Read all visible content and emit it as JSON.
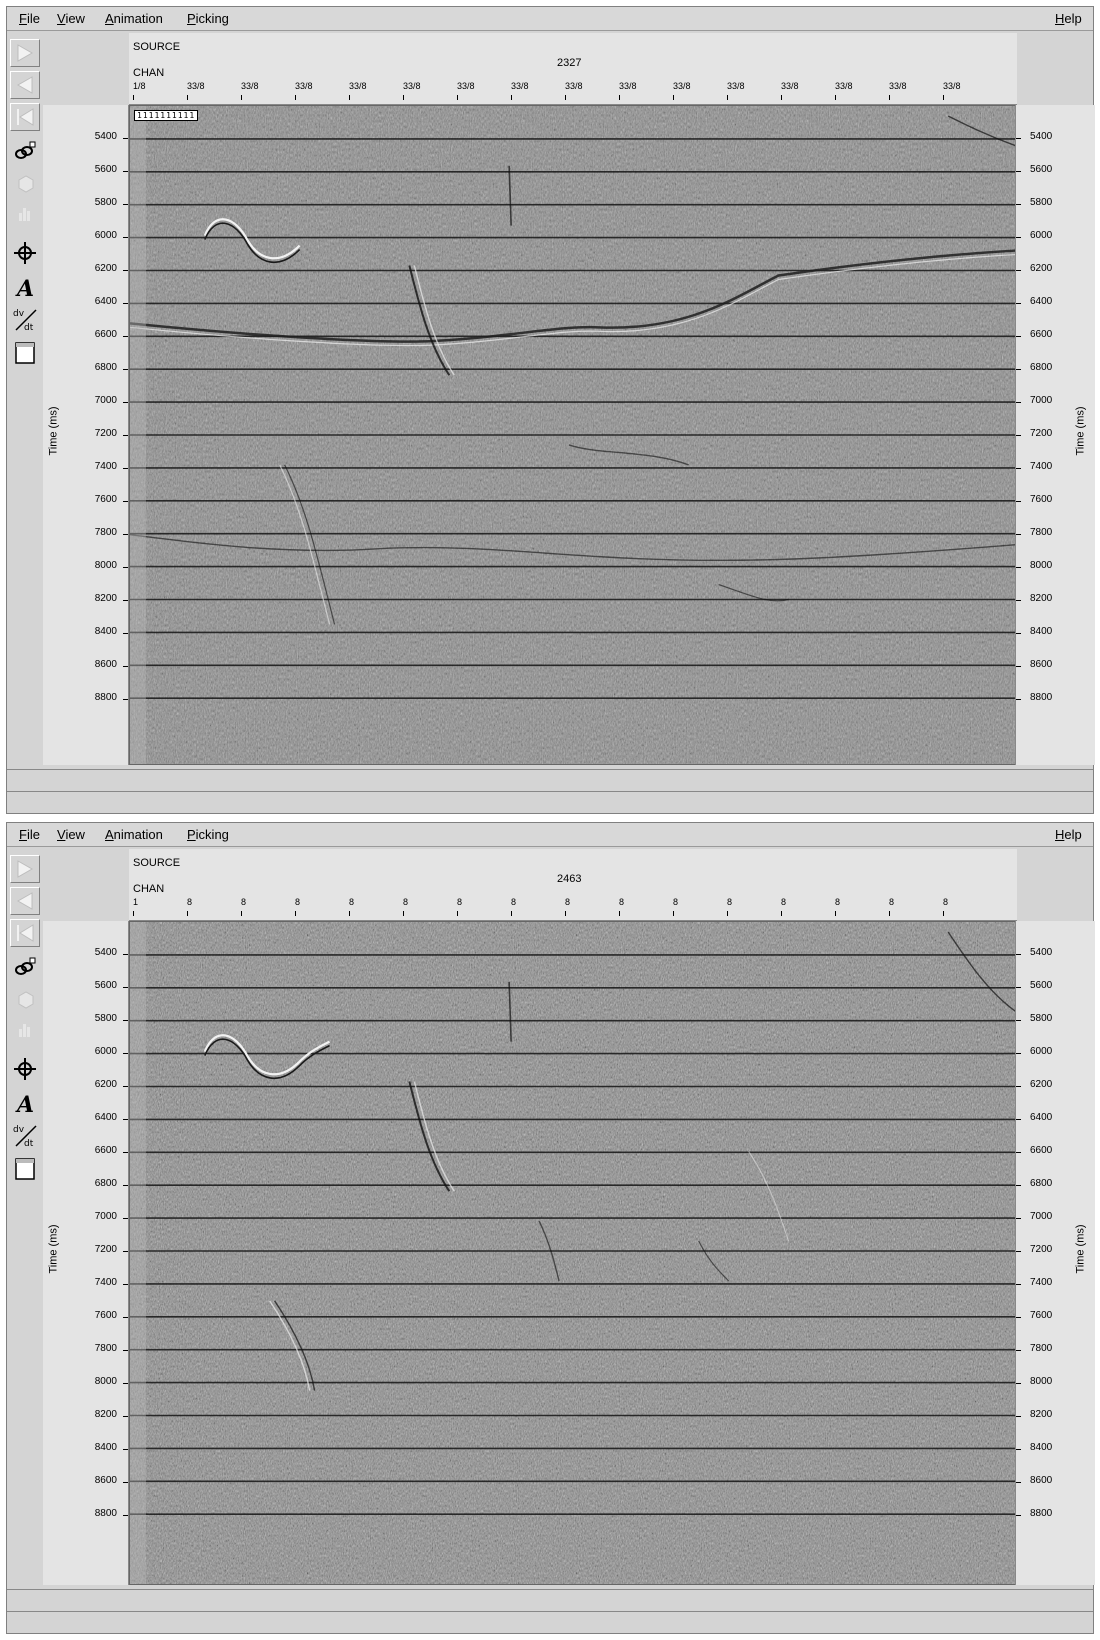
{
  "windows": [
    {
      "menu": [
        "File",
        "View",
        "Animation",
        "Picking"
      ],
      "help": "Help",
      "header": {
        "source_label": "SOURCE",
        "source_value": "2327",
        "chan_label": "CHAN"
      },
      "chan_ticks": [
        "1/8",
        "33/8",
        "33/8",
        "33/8",
        "33/8",
        "33/8",
        "33/8",
        "33/8",
        "33/8",
        "33/8",
        "33/8",
        "33/8",
        "33/8",
        "33/8",
        "33/8",
        "33/8"
      ],
      "pick_tag": "1111111111",
      "time_ticks": [
        "5400",
        "5600",
        "5800",
        "6000",
        "6200",
        "6400",
        "6600",
        "6800",
        "7000",
        "7200",
        "7400",
        "7600",
        "7800",
        "8000",
        "8200",
        "8400",
        "8600",
        "8800"
      ],
      "axis_title": "Time (ms)"
    },
    {
      "menu": [
        "File",
        "View",
        "Animation",
        "Picking"
      ],
      "help": "Help",
      "header": {
        "source_label": "SOURCE",
        "source_value": "2463",
        "chan_label": "CHAN"
      },
      "chan_ticks": [
        "1",
        "8",
        "8",
        "8",
        "8",
        "8",
        "8",
        "8",
        "8",
        "8",
        "8",
        "8",
        "8",
        "8",
        "8",
        "8"
      ],
      "time_ticks": [
        "5400",
        "5600",
        "5800",
        "6000",
        "6200",
        "6400",
        "6600",
        "6800",
        "7000",
        "7200",
        "7400",
        "7600",
        "7800",
        "8000",
        "8200",
        "8400",
        "8600",
        "8800"
      ],
      "axis_title": "Time (ms)"
    }
  ],
  "toolbar_icons": [
    "play-forward-icon",
    "play-backward-icon",
    "rewind-icon",
    "zoom-link-icon",
    "cube-icon",
    "histogram-icon",
    "move-cross-icon",
    "annotate-text-icon",
    "derivative-icon",
    "blank-panel-icon"
  ]
}
